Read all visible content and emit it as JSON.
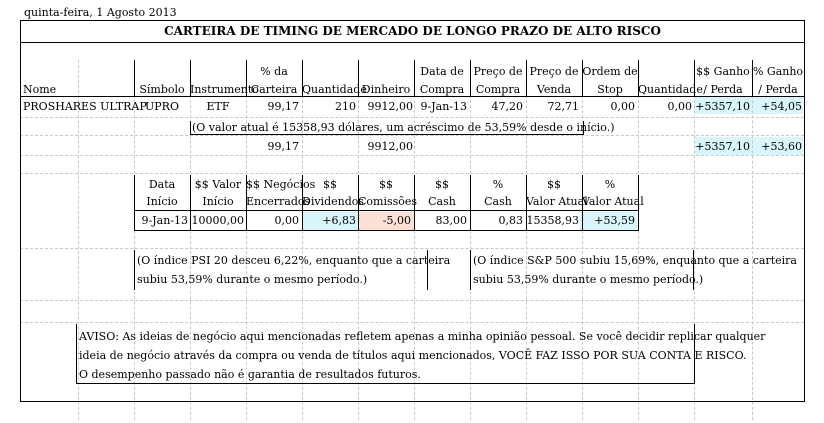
{
  "date": "quinta-feira, 1 Agosto 2013",
  "title": "CARTEIRA DE TIMING DE MERCADO DE LONGO PRAZO DE ALTO RISCO",
  "headers": {
    "nome": "Nome",
    "simbolo": "Símbolo",
    "instrumento": "Instrumento",
    "pct_carteira_1": "% da",
    "pct_carteira_2": "Carteira",
    "quantidade": "Quantidade",
    "dinheiro": "Dinheiro",
    "data_compra_1": "Data de",
    "data_compra_2": "Compra",
    "preco_compra_1": "Preço de",
    "preco_compra_2": "Compra",
    "preco_venda_1": "Preço de",
    "preco_venda_2": "Venda",
    "ordem_stop_1": "Ordem de",
    "ordem_stop_2": "Stop",
    "quantidade2": "Quantidade",
    "ganho_1": "$$ Ganho",
    "ganho_2": "/ Perda",
    "pct_ganho_1": "% Ganho",
    "pct_ganho_2": "/ Perda"
  },
  "position": {
    "nome": "PROSHARES ULTRAP",
    "simbolo": "UPRO",
    "instrumento": "ETF",
    "pct_carteira": "99,17",
    "quantidade": "210",
    "dinheiro": "9912,00",
    "data_compra": "9-Jan-13",
    "preco_compra": "47,20",
    "preco_venda": "72,71",
    "ordem_stop": "0,00",
    "quantidade2": "0,00",
    "ganho": "+5357,10",
    "pct_ganho": "+54,05"
  },
  "note": "(O valor atual é 15358,93 dólares, um acréscimo de 53,59% desde o início.)",
  "totals": {
    "pct_carteira": "99,17",
    "dinheiro": "9912,00",
    "ganho": "+5357,10",
    "pct_ganho": "+53,60"
  },
  "summary_headers": {
    "data_inicio_1": "Data",
    "data_inicio_2": "Início",
    "valor_inicio_1": "$$ Valor",
    "valor_inicio_2": "Início",
    "negocios_1": "$$ Negócios",
    "negocios_2": "Encerrados",
    "dividendos_1": "$$",
    "dividendos_2": "Dividendos",
    "comissoes_1": "$$",
    "comissoes_2": "Comissões",
    "cash_1": "$$",
    "cash_2": "Cash",
    "pct_cash_1": "%",
    "pct_cash_2": "Cash",
    "valor_atual_1": "$$",
    "valor_atual_2": "Valor Atual",
    "pct_valor_atual_1": "%",
    "pct_valor_atual_2": "Valor Atual"
  },
  "summary": {
    "data_inicio": "9-Jan-13",
    "valor_inicio": "10000,00",
    "negocios": "0,00",
    "dividendos": "+6,83",
    "comissoes": "-5,00",
    "cash": "83,00",
    "pct_cash": "0,83",
    "valor_atual": "15358,93",
    "pct_valor_atual": "+53,59"
  },
  "psi_note_1": "(O índice PSI 20 desceu 6,22%, enquanto que a carteira",
  "psi_note_2": "subiu 53,59% durante o mesmo período.)",
  "sp_note_1": "(O índice S&P 500 subiu 15,69%, enquanto que a carteira",
  "sp_note_2": "subiu 53,59% durante o mesmo período.)",
  "disclaimer_1": "AVISO: As ideias de negócio aqui mencionadas refletem apenas a minha opinião pessoal. Se você decidir replicar qualquer",
  "disclaimer_2": "ideia de negócio através da compra ou venda de títulos aqui mencionados, VOCÊ FAZ ISSO POR SUA CONTA E RISCO.",
  "disclaimer_3": "O desempenho passado não é garantia de resultados futuros.",
  "colors": {
    "gain_bg": "#d8f5fb",
    "loss_bg": "#fbe0d3"
  }
}
